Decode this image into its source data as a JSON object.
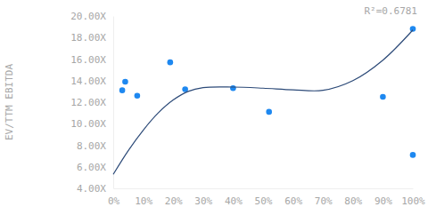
{
  "chart_data": {
    "type": "scatter",
    "y_label": "EV/TTM EBITDA",
    "annotation": "R²=0.6781",
    "xlim": [
      0,
      100
    ],
    "xticks": [
      {
        "value": 0,
        "label": "0%"
      },
      {
        "value": 10,
        "label": "10%"
      },
      {
        "value": 20,
        "label": "20%"
      },
      {
        "value": 30,
        "label": "30%"
      },
      {
        "value": 40,
        "label": "40%"
      },
      {
        "value": 50,
        "label": "50%"
      },
      {
        "value": 60,
        "label": "60%"
      },
      {
        "value": 70,
        "label": "70%"
      },
      {
        "value": 80,
        "label": "80%"
      },
      {
        "value": 90,
        "label": "90%"
      },
      {
        "value": 100,
        "label": "100%"
      }
    ],
    "ylim": [
      4,
      20
    ],
    "yticks": [
      {
        "value": 4,
        "label": "4.00X"
      },
      {
        "value": 6,
        "label": "6.00X"
      },
      {
        "value": 8,
        "label": "8.00X"
      },
      {
        "value": 10,
        "label": "10.00X"
      },
      {
        "value": 12,
        "label": "12.00X"
      },
      {
        "value": 14,
        "label": "14.00X"
      },
      {
        "value": 16,
        "label": "16.00X"
      },
      {
        "value": 18,
        "label": "18.00X"
      },
      {
        "value": 20,
        "label": "20.00X"
      }
    ],
    "grid": false,
    "series": [
      {
        "type": "scatter",
        "marker": "circle",
        "color": "#1e88f0",
        "x": [
          3,
          4,
          8,
          19,
          24,
          40,
          52,
          90,
          100,
          100
        ],
        "values": [
          13.1,
          13.9,
          12.6,
          15.7,
          13.2,
          13.3,
          11.1,
          12.5,
          18.8,
          7.1
        ]
      },
      {
        "type": "line",
        "line_style": "solid",
        "color": "#2c4a78",
        "x": [
          0,
          5,
          10,
          15,
          20,
          25,
          30,
          40,
          50,
          60,
          70,
          80,
          90,
          100
        ],
        "values": [
          5.3,
          7.5,
          9.4,
          11.0,
          12.2,
          13.0,
          13.35,
          13.4,
          13.3,
          13.15,
          13.1,
          14.0,
          15.9,
          18.7
        ]
      }
    ]
  }
}
